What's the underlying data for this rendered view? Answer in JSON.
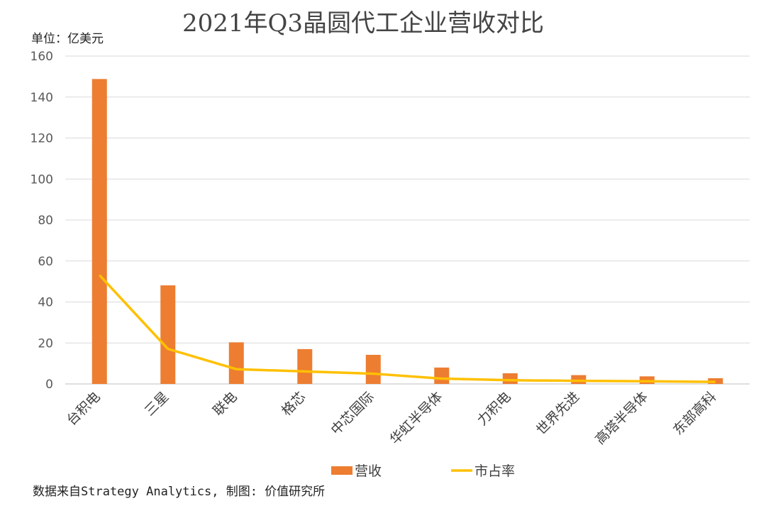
{
  "chart_data": {
    "type": "bar",
    "title": "2021年Q3晶圆代工企业营收对比",
    "unit_label": "单位：亿美元",
    "categories": [
      "台积电",
      "三星",
      "联电",
      "格芯",
      "中芯国际",
      "华虹半导体",
      "力积电",
      "世界先进",
      "高塔半导体",
      "东部高科"
    ],
    "ylim": [
      0,
      160
    ],
    "yticks": [
      0,
      20,
      40,
      60,
      80,
      100,
      120,
      140,
      160
    ],
    "grid": true,
    "legend_position": "bottom",
    "series": [
      {
        "name": "营收",
        "type": "bar",
        "color": "#ED7D31",
        "values": [
          148.8,
          48.1,
          20.3,
          17.0,
          14.2,
          8.0,
          5.2,
          4.3,
          3.7,
          2.8
        ]
      },
      {
        "name": "市占率",
        "type": "line",
        "color": "#FFC000",
        "values": [
          53.1,
          17.1,
          7.2,
          6.1,
          5.0,
          2.6,
          1.8,
          1.5,
          1.3,
          1.0
        ]
      }
    ]
  },
  "source_note": "数据来自Strategy Analytics, 制图: 价值研究所"
}
